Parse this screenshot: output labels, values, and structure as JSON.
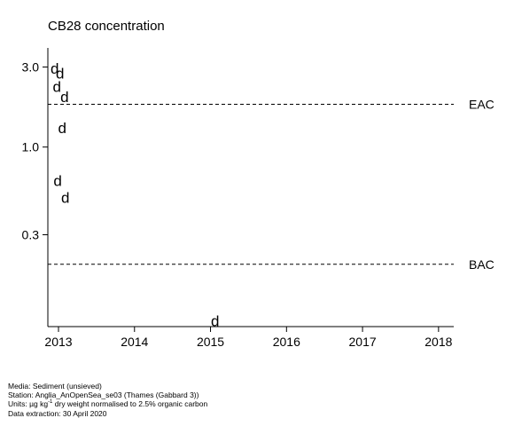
{
  "chart_data": {
    "type": "scatter",
    "title": "CB28 concentration",
    "xlabel": "",
    "ylabel": "",
    "y_scale": "log",
    "x_ticks": [
      "2013",
      "2014",
      "2015",
      "2016",
      "2017",
      "2018"
    ],
    "y_ticks": [
      "0.3",
      "1.0",
      "3.0"
    ],
    "xlim": [
      2012.86,
      2018.2
    ],
    "ylim": [
      0.085,
      3.9
    ],
    "marker": "d",
    "points": [
      {
        "x": 2012.95,
        "y": 2.95
      },
      {
        "x": 2013.02,
        "y": 2.75
      },
      {
        "x": 2012.98,
        "y": 2.3
      },
      {
        "x": 2013.08,
        "y": 2.0
      },
      {
        "x": 2013.05,
        "y": 1.3
      },
      {
        "x": 2012.99,
        "y": 0.63
      },
      {
        "x": 2013.09,
        "y": 0.5
      },
      {
        "x": 2015.06,
        "y": 0.092
      }
    ],
    "reference_lines": [
      {
        "name": "EAC",
        "y": 1.8
      },
      {
        "name": "BAC",
        "y": 0.2
      }
    ],
    "grid": false
  },
  "footer": {
    "media": "Media: Sediment (unsieved)",
    "station": "Station: Anglia_AnOpenSea_se03 (Thames (Gabbard 3))",
    "units_prefix": "Units: µg kg",
    "units_sup": "-1",
    "units_suffix": " dry weight normalised to 2.5% organic carbon",
    "extraction": "Data extraction: 30 April 2020"
  }
}
